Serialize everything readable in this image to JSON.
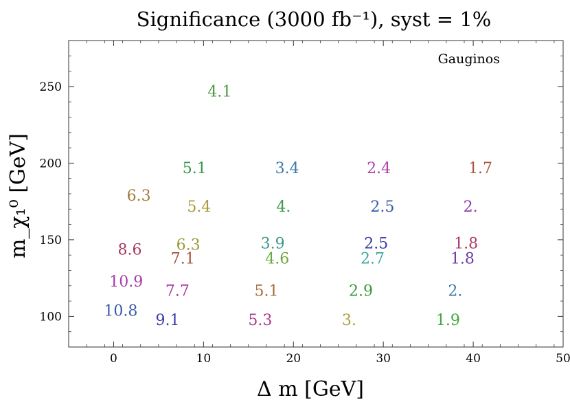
{
  "chart_data": {
    "type": "scatter",
    "title": "Significance (3000 fb⁻¹), syst = 1%",
    "xlabel": "Δ m [GeV]",
    "ylabel": "m_χ₁⁰ [GeV]",
    "xlim": [
      -5,
      50
    ],
    "ylim": [
      80,
      280
    ],
    "xticks": [
      0,
      10,
      20,
      30,
      40,
      50
    ],
    "yticks": [
      100,
      150,
      200,
      250
    ],
    "annotation": "Gauginos",
    "grid": false,
    "points": [
      {
        "x": 11.8,
        "y": 247,
        "label": "4.1",
        "color": "#4a9a3c"
      },
      {
        "x": 9.0,
        "y": 197,
        "label": "5.1",
        "color": "#2f9a4a"
      },
      {
        "x": 19.3,
        "y": 197,
        "label": "3.4",
        "color": "#3a78a8"
      },
      {
        "x": 29.5,
        "y": 197,
        "label": "2.4",
        "color": "#b03fae"
      },
      {
        "x": 40.8,
        "y": 197,
        "label": "1.7",
        "color": "#a8553a"
      },
      {
        "x": 2.8,
        "y": 179,
        "label": "6.3",
        "color": "#a8783a"
      },
      {
        "x": 9.5,
        "y": 172,
        "label": "5.4",
        "color": "#a89a3a"
      },
      {
        "x": 18.9,
        "y": 172,
        "label": "4.",
        "color": "#3a9a4a"
      },
      {
        "x": 29.9,
        "y": 172,
        "label": "2.5",
        "color": "#3a5aa8"
      },
      {
        "x": 39.7,
        "y": 172,
        "label": "2.",
        "color": "#8e3aa8"
      },
      {
        "x": 1.8,
        "y": 144,
        "label": "8.6",
        "color": "#a83a5a"
      },
      {
        "x": 8.3,
        "y": 147,
        "label": "6.3",
        "color": "#9a9a3a"
      },
      {
        "x": 7.7,
        "y": 138,
        "label": "7.1",
        "color": "#a8503a"
      },
      {
        "x": 17.7,
        "y": 148,
        "label": "3.9",
        "color": "#3a9a8a"
      },
      {
        "x": 18.2,
        "y": 138,
        "label": "4.6",
        "color": "#6aa83a"
      },
      {
        "x": 29.2,
        "y": 148,
        "label": "2.5",
        "color": "#3a3aa8"
      },
      {
        "x": 28.8,
        "y": 138,
        "label": "2.7",
        "color": "#3aa8a0"
      },
      {
        "x": 39.2,
        "y": 148,
        "label": "1.8",
        "color": "#a83a6a"
      },
      {
        "x": 38.8,
        "y": 138,
        "label": "1.8",
        "color": "#6a3aa8"
      },
      {
        "x": 1.4,
        "y": 123,
        "label": "10.9",
        "color": "#a83aa8"
      },
      {
        "x": 7.1,
        "y": 117,
        "label": "7.7",
        "color": "#a83a9a"
      },
      {
        "x": 17.0,
        "y": 117,
        "label": "5.1",
        "color": "#a86a3a"
      },
      {
        "x": 27.5,
        "y": 117,
        "label": "2.9",
        "color": "#3a9a3a"
      },
      {
        "x": 38.0,
        "y": 117,
        "label": "2.",
        "color": "#3a7aa8"
      },
      {
        "x": 0.8,
        "y": 104,
        "label": "10.8",
        "color": "#3a5aa8"
      },
      {
        "x": 6.0,
        "y": 98,
        "label": "9.1",
        "color": "#3a3aa8"
      },
      {
        "x": 16.3,
        "y": 98,
        "label": "5.3",
        "color": "#a83a8a"
      },
      {
        "x": 26.2,
        "y": 98,
        "label": "3.",
        "color": "#a8a03a"
      },
      {
        "x": 37.2,
        "y": 98,
        "label": "1.9",
        "color": "#3aa83a"
      }
    ]
  }
}
